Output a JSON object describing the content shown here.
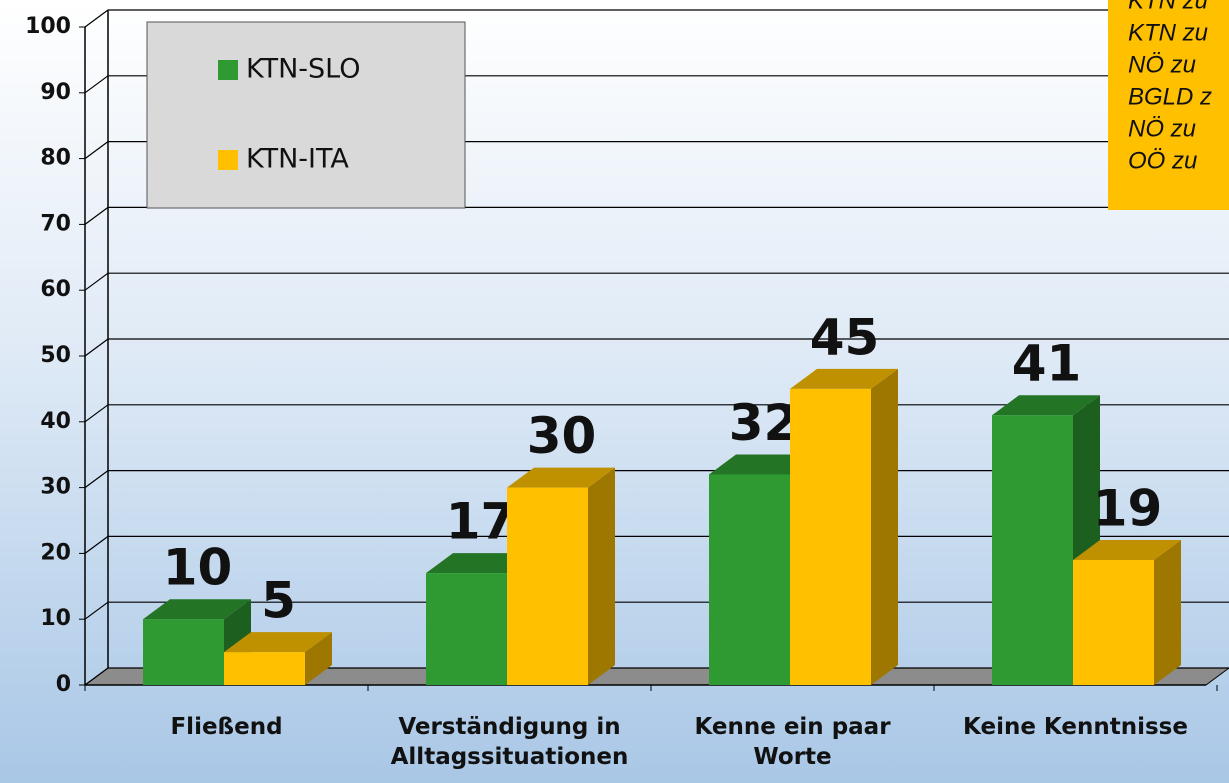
{
  "chart_data": {
    "type": "bar3d",
    "categories": [
      "Fließend",
      "Verständigung in Alltagssituationen",
      "Kenne ein paar Worte",
      "Keine Kenntnisse"
    ],
    "series": [
      {
        "name": "KTN-SLO",
        "color": "#2e9a31",
        "values": [
          10,
          17,
          32,
          41
        ]
      },
      {
        "name": "KTN-ITA",
        "color": "#ffc000",
        "values": [
          5,
          30,
          45,
          19
        ]
      }
    ],
    "ylim": [
      0,
      100
    ],
    "yticks": [
      0,
      10,
      20,
      30,
      40,
      50,
      60,
      70,
      80,
      90,
      100
    ],
    "grid": true,
    "annotations": [
      "KTN zu",
      "KTN zu",
      "NÖ zu",
      "BGLD z",
      "NÖ zu",
      "OÖ zu"
    ]
  }
}
